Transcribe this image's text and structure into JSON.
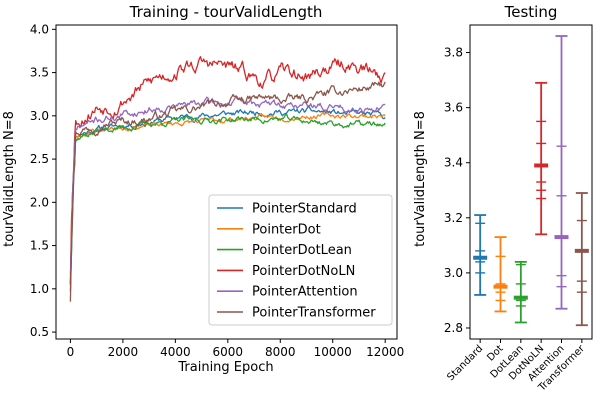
{
  "chart_data": [
    {
      "type": "line",
      "title": "Training - tourValidLength",
      "xlabel": "Training Epoch",
      "ylabel": "tourValidLength N=8",
      "xlim": [
        -550,
        12450
      ],
      "ylim": [
        0.42,
        4.05
      ],
      "xticks": [
        0,
        2000,
        4000,
        6000,
        8000,
        10000,
        12000
      ],
      "yticks": [
        0.5,
        1.0,
        1.5,
        2.0,
        2.5,
        3.0,
        3.5,
        4.0
      ],
      "legend_position": "lower-right",
      "grid": false,
      "series": [
        {
          "name": "PointerStandard",
          "color": "#1f77b4",
          "start": 1.05,
          "y": [
            2.78,
            2.85,
            2.88,
            2.92,
            2.95,
            2.98,
            3.0,
            3.02,
            3.03,
            3.05,
            3.04,
            3.05,
            3.04,
            3.02,
            3.0
          ],
          "noise": 0.05,
          "seed": 11
        },
        {
          "name": "PointerDot",
          "color": "#ff7f0e",
          "start": 1.1,
          "y": [
            2.78,
            2.84,
            2.86,
            2.88,
            2.9,
            2.92,
            2.93,
            2.95,
            2.97,
            2.98,
            2.99,
            3.0,
            3.0,
            3.0,
            3.0
          ],
          "noise": 0.04,
          "seed": 23
        },
        {
          "name": "PointerDotLean",
          "color": "#2ca02c",
          "start": 1.0,
          "y": [
            2.76,
            2.82,
            2.86,
            2.89,
            2.92,
            2.94,
            2.95,
            2.96,
            2.96,
            2.96,
            2.96,
            2.94,
            2.92,
            2.9,
            2.9
          ],
          "noise": 0.05,
          "seed": 37
        },
        {
          "name": "PointerDotNoLN",
          "color": "#d62728",
          "start": 1.2,
          "y": [
            2.95,
            3.1,
            3.15,
            3.3,
            3.45,
            3.55,
            3.6,
            3.58,
            3.5,
            3.4,
            3.5,
            3.45,
            3.55,
            3.6,
            3.45
          ],
          "noise": 0.11,
          "seed": 53
        },
        {
          "name": "PointerAttention",
          "color": "#9467bd",
          "start": 1.1,
          "y": [
            2.85,
            2.95,
            3.0,
            3.05,
            3.1,
            3.12,
            3.15,
            3.15,
            3.15,
            3.14,
            3.12,
            3.12,
            3.1,
            3.1,
            3.08
          ],
          "noise": 0.06,
          "seed": 71
        },
        {
          "name": "PointerTransformer",
          "color": "#8c564b",
          "start": 1.0,
          "y": [
            2.82,
            2.9,
            2.93,
            2.95,
            3.0,
            3.05,
            3.1,
            3.15,
            3.18,
            3.2,
            3.18,
            3.2,
            3.25,
            3.3,
            3.35
          ],
          "noise": 0.07,
          "seed": 97
        }
      ],
      "y_at_epochs": [
        200,
        1000,
        1800,
        2600,
        3400,
        4200,
        5000,
        5800,
        6600,
        7400,
        8200,
        9000,
        9800,
        10600,
        12000
      ]
    },
    {
      "type": "boxplot",
      "title": "Testing",
      "xlabel": "",
      "ylabel": "tourValidLength N=8",
      "ylim": [
        2.76,
        3.9
      ],
      "yticks": [
        2.8,
        3.0,
        3.2,
        3.4,
        3.6,
        3.8
      ],
      "categories": [
        "Standard",
        "Dot",
        "DotLean",
        "DotNoLN",
        "Attention",
        "Transformer"
      ],
      "colors": [
        "#1f77b4",
        "#ff7f0e",
        "#2ca02c",
        "#d62728",
        "#9467bd",
        "#8c564b"
      ],
      "min": [
        2.92,
        2.86,
        2.82,
        3.14,
        2.87,
        2.81
      ],
      "max": [
        3.21,
        3.13,
        3.04,
        3.69,
        3.86,
        3.29
      ],
      "median": [
        3.055,
        2.95,
        2.91,
        3.39,
        3.13,
        3.08
      ],
      "other_values": [
        [
          3.18,
          3.08,
          3.04,
          3.0
        ],
        [
          2.96,
          2.93,
          2.9,
          3.06
        ],
        [
          2.96,
          2.88,
          2.9,
          3.03
        ],
        [
          3.55,
          3.47,
          3.33,
          3.3,
          3.27
        ],
        [
          3.46,
          3.28,
          2.99,
          2.95
        ],
        [
          3.19,
          3.08,
          2.97,
          2.93
        ]
      ]
    }
  ]
}
